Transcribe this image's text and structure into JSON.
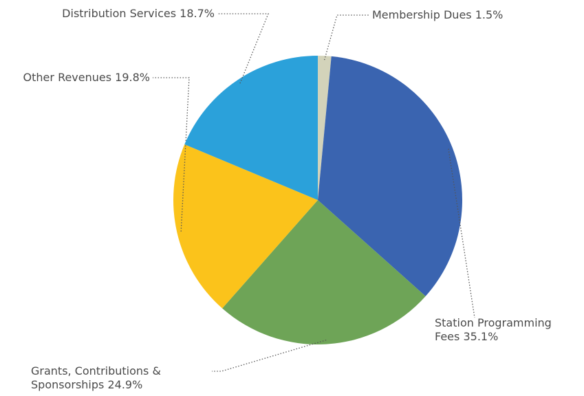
{
  "chart_data": {
    "type": "pie",
    "categories": [
      "Membership Dues",
      "Station Programming Fees",
      "Grants, Contributions & Sponsorships",
      "Other Revenues",
      "Distribution Services"
    ],
    "values": [
      1.5,
      35.1,
      24.9,
      19.8,
      18.7
    ],
    "value_labels": [
      "1.5%",
      "35.1%",
      "24.9%",
      "19.8%",
      "18.7%"
    ],
    "colors": [
      "#d3d3ba",
      "#3a64b0",
      "#6ea457",
      "#fbc31b",
      "#2ba1da"
    ]
  }
}
